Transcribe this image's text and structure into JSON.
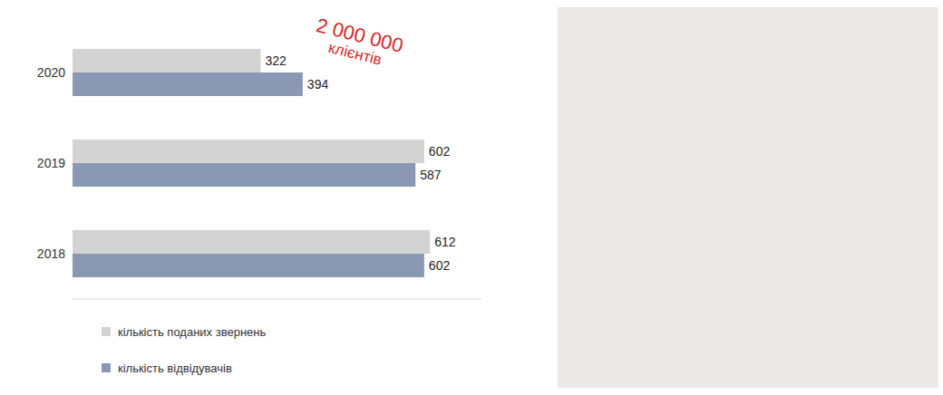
{
  "chart_data": {
    "type": "bar",
    "orientation": "horizontal",
    "categories": [
      "2020",
      "2019",
      "2018"
    ],
    "series": [
      {
        "name": "кількість поданих звернень",
        "color": "#d3d3d3",
        "values": [
          322,
          602,
          612
        ]
      },
      {
        "name": "кількість відвідувачів",
        "color": "#8a98b3",
        "values": [
          394,
          587,
          602
        ]
      }
    ],
    "xlim": [
      0,
      700
    ],
    "data_labels": true,
    "tick_labels": "y",
    "grid": false,
    "legend": "bottom left",
    "annotations": [
      "2 000 000",
      "клієнтів"
    ],
    "annotation_color": "#d12b2b"
  }
}
